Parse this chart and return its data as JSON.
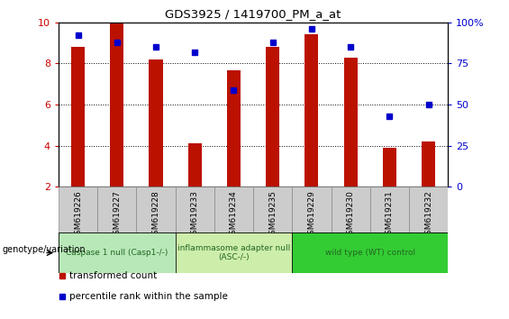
{
  "title": "GDS3925 / 1419700_PM_a_at",
  "samples": [
    "GSM619226",
    "GSM619227",
    "GSM619228",
    "GSM619233",
    "GSM619234",
    "GSM619235",
    "GSM619229",
    "GSM619230",
    "GSM619231",
    "GSM619232"
  ],
  "transformed_count": [
    8.8,
    9.95,
    8.2,
    4.1,
    7.65,
    8.8,
    9.4,
    8.3,
    3.9,
    4.2
  ],
  "percentile_rank": [
    92,
    88,
    85,
    82,
    59,
    88,
    96,
    85,
    43,
    50
  ],
  "ylim_left": [
    2,
    10
  ],
  "ylim_right": [
    0,
    100
  ],
  "bar_color": "#bb1100",
  "dot_color": "#0000cc",
  "bar_width": 0.35,
  "groups": [
    {
      "label": "Caspase 1 null (Casp1-/-)",
      "start": 0,
      "end": 3,
      "color": "#b8e8b8"
    },
    {
      "label": "inflammasome adapter null\n(ASC-/-)",
      "start": 3,
      "end": 6,
      "color": "#cceeaa"
    },
    {
      "label": "wild type (WT) control",
      "start": 6,
      "end": 10,
      "color": "#33cc33"
    }
  ],
  "legend_items": [
    {
      "label": "transformed count",
      "color": "#bb1100"
    },
    {
      "label": "percentile rank within the sample",
      "color": "#0000cc"
    }
  ],
  "xlabel_genotype": "genotype/variation",
  "tick_color_left": "#cc0000",
  "tick_color_right": "#0000cc",
  "yticks_left": [
    2,
    4,
    6,
    8,
    10
  ],
  "yticks_right": [
    0,
    25,
    50,
    75,
    100
  ],
  "ytick_right_labels": [
    "0",
    "25",
    "50",
    "75",
    "100%"
  ],
  "grid_style": "dotted",
  "group_text_color": "#226622",
  "group_border_color": "#000000",
  "sample_box_color": "#cccccc",
  "sample_box_edge": "#888888"
}
